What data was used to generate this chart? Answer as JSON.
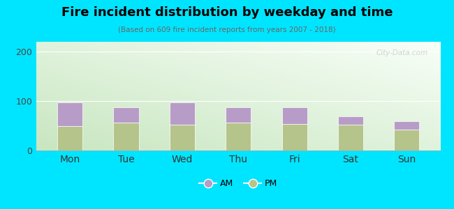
{
  "title": "Fire incident distribution by weekday and time",
  "subtitle": "(Based on 609 fire incident reports from years 2007 - 2018)",
  "days": [
    "Mon",
    "Tue",
    "Wed",
    "Thu",
    "Fri",
    "Sat",
    "Sun"
  ],
  "pm_values": [
    50,
    57,
    52,
    57,
    53,
    52,
    42
  ],
  "am_values": [
    48,
    30,
    46,
    30,
    35,
    17,
    17
  ],
  "am_color": "#b89cc8",
  "pm_color": "#b5c48a",
  "ylim": [
    0,
    220
  ],
  "yticks": [
    0,
    100,
    200
  ],
  "outer_bg": "#00e5ff",
  "bar_width": 0.45,
  "watermark": "City-Data.com",
  "legend_am": "AM",
  "legend_pm": "PM",
  "grad_corner_green": "#c8e6c0",
  "grad_corner_white": "#f8fff8"
}
